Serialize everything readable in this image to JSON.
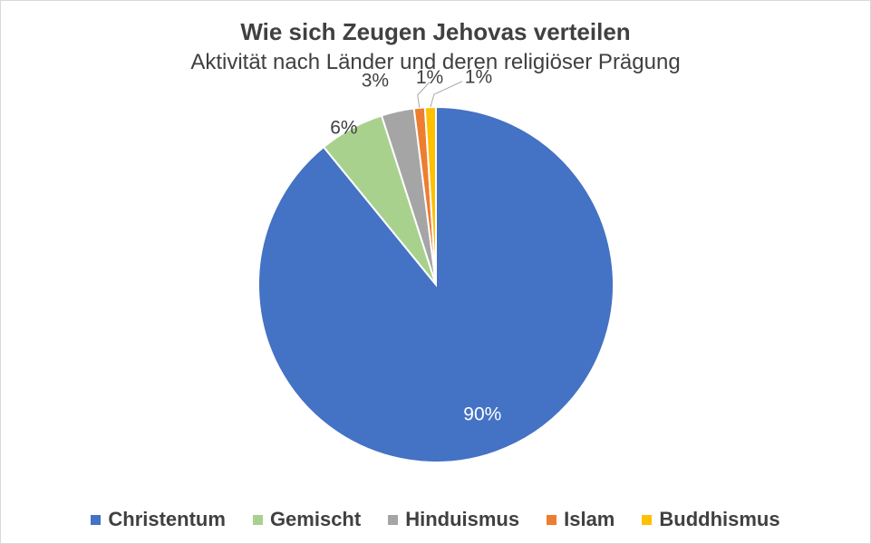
{
  "chart_data": {
    "type": "pie",
    "title": "Wie sich Zeugen Jehovas verteilen",
    "subtitle": "Aktivität nach Länder und deren religiöser Prägung",
    "categories": [
      "Christentum",
      "Gemischt",
      "Hinduismus",
      "Islam",
      "Buddhismus"
    ],
    "values": [
      90,
      6,
      3,
      1,
      1
    ],
    "labels": [
      "90%",
      "6%",
      "3%",
      "1%",
      "1%"
    ],
    "colors": [
      "#4472c4",
      "#a9d18e",
      "#a5a5a5",
      "#ed7d31",
      "#ffc000"
    ],
    "legend": "bottom"
  }
}
